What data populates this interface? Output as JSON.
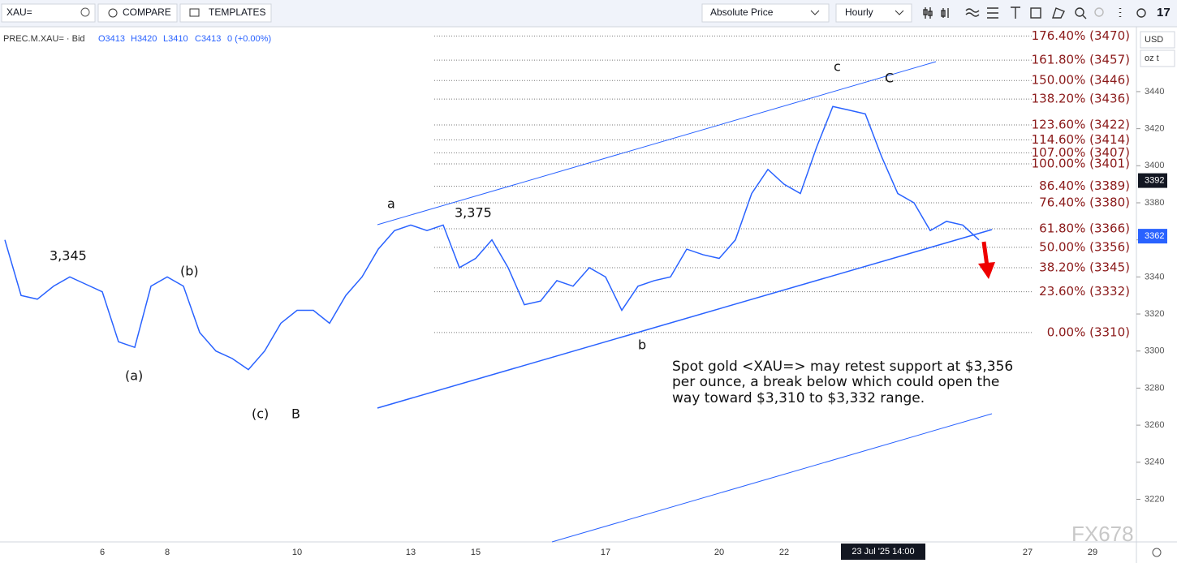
{
  "toolbar": {
    "symbol": "XAU=",
    "compare": "COMPARE",
    "templates": "TEMPLATES",
    "price_mode": "Absolute Price",
    "interval": "Hourly",
    "logo": "17"
  },
  "legend": {
    "symbol": "PREC.M.XAU= · Bid",
    "open": "O3413",
    "high": "H3420",
    "low": "L3410",
    "close": "C3413",
    "change": "0 (+0.00%)"
  },
  "axis": {
    "currency": "USD",
    "unit": "oz t"
  },
  "waves": [
    "3,345",
    "(b)",
    "(a)",
    "(c)",
    "B",
    "a",
    "3,375",
    "b",
    "c",
    "C"
  ],
  "note": [
    "Spot gold <XAU=> may retest support at $3,356",
    "per ounce, a break below which could open the",
    "way toward $3,310 to $3,332 range."
  ],
  "crosshair_time": "23 Jul '25 14:00",
  "watermark": "FX678",
  "chart_data": {
    "type": "line",
    "categories": [
      null,
      null,
      null,
      null,
      null,
      null,
      "6",
      null,
      null,
      null,
      "8",
      null,
      null,
      null,
      null,
      null,
      null,
      null,
      "10",
      null,
      null,
      null,
      null,
      null,
      null,
      "13",
      null,
      null,
      null,
      "15",
      null,
      null,
      null,
      null,
      null,
      null,
      null,
      "17",
      null,
      null,
      null,
      null,
      null,
      null,
      "20",
      null,
      null,
      null,
      "22",
      null,
      null,
      null,
      null,
      null,
      null,
      null,
      null,
      null,
      null,
      null,
      null,
      null,
      null,
      "27",
      null,
      null,
      null,
      "29",
      null,
      null
    ],
    "series": [
      {
        "color": "#2962ff",
        "values": [
          3360,
          3330,
          3328,
          3335,
          3340,
          3336,
          3332,
          3305,
          3302,
          3335,
          3340,
          3335,
          3310,
          3300,
          3296,
          3290,
          3300,
          3315,
          3322,
          3322,
          3315,
          3330,
          3340,
          3355,
          3365,
          3368,
          3365,
          3368,
          3345,
          3350,
          3360,
          3345,
          3325,
          3327,
          3338,
          3335,
          3345,
          3340,
          3322,
          3335,
          3338,
          3340,
          3355,
          3352,
          3350,
          3360,
          3385,
          3398,
          3390,
          3385,
          3410,
          3432,
          3430,
          3428,
          3405,
          3385,
          3380,
          3365,
          3370,
          3368,
          3360,
          null,
          null,
          null,
          null,
          null,
          null,
          null,
          null,
          null
        ]
      }
    ],
    "ylim": [
      3197,
      3475
    ],
    "yticks": [
      3220,
      3240,
      3260,
      3280,
      3300,
      3320,
      3340,
      3360,
      3380,
      3400,
      3420,
      3440
    ],
    "fib_levels": [
      {
        "value": 3470,
        "label": "176.40% (3470)"
      },
      {
        "value": 3457,
        "label": "161.80% (3457)"
      },
      {
        "value": 3446,
        "label": "150.00% (3446)"
      },
      {
        "value": 3436,
        "label": "138.20% (3436)"
      },
      {
        "value": 3422,
        "label": "123.60% (3422)"
      },
      {
        "value": 3414,
        "label": "114.60% (3414)"
      },
      {
        "value": 3407,
        "label": "107.00% (3407)"
      },
      {
        "value": 3401,
        "label": "100.00% (3401)"
      },
      {
        "value": 3389,
        "label": "86.40% (3389)"
      },
      {
        "value": 3380,
        "label": "76.40% (3380)"
      },
      {
        "value": 3366,
        "label": "61.80% (3366)"
      },
      {
        "value": 3356,
        "label": "50.00% (3356)"
      },
      {
        "value": 3345,
        "label": "38.20% (3345)"
      },
      {
        "value": 3332,
        "label": "23.60% (3332)"
      },
      {
        "value": 3310,
        "label": "0.00% (3310)"
      }
    ],
    "crosshair_price": 3392,
    "last_price": 3362
  }
}
